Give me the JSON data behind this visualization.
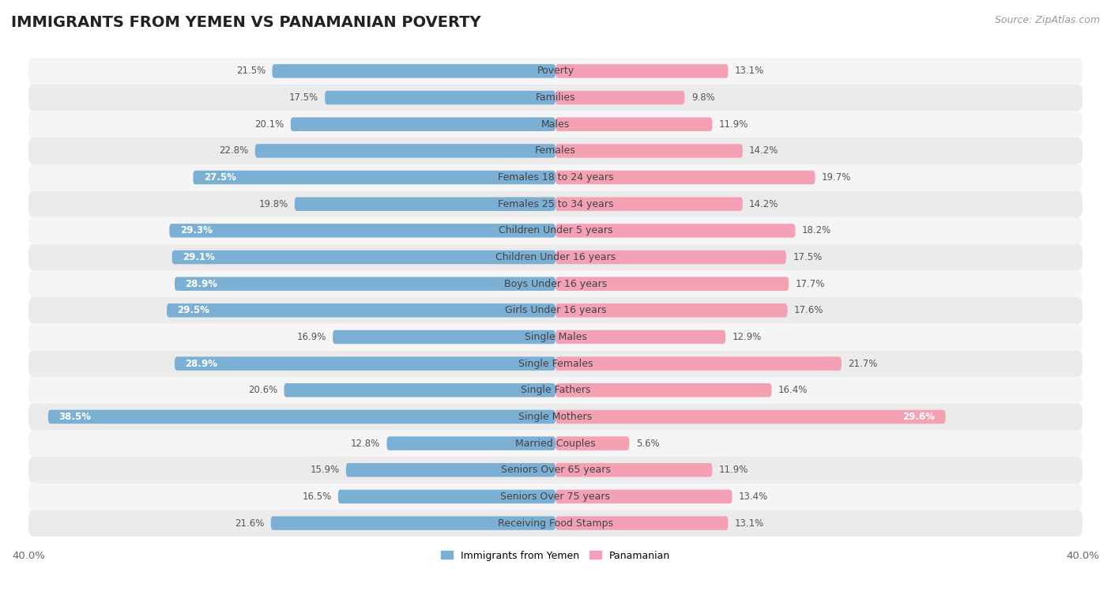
{
  "title": "IMMIGRANTS FROM YEMEN VS PANAMANIAN POVERTY",
  "source": "Source: ZipAtlas.com",
  "categories": [
    "Poverty",
    "Families",
    "Males",
    "Females",
    "Females 18 to 24 years",
    "Females 25 to 34 years",
    "Children Under 5 years",
    "Children Under 16 years",
    "Boys Under 16 years",
    "Girls Under 16 years",
    "Single Males",
    "Single Females",
    "Single Fathers",
    "Single Mothers",
    "Married Couples",
    "Seniors Over 65 years",
    "Seniors Over 75 years",
    "Receiving Food Stamps"
  ],
  "yemen_values": [
    21.5,
    17.5,
    20.1,
    22.8,
    27.5,
    19.8,
    29.3,
    29.1,
    28.9,
    29.5,
    16.9,
    28.9,
    20.6,
    38.5,
    12.8,
    15.9,
    16.5,
    21.6
  ],
  "panama_values": [
    13.1,
    9.8,
    11.9,
    14.2,
    19.7,
    14.2,
    18.2,
    17.5,
    17.7,
    17.6,
    12.9,
    21.7,
    16.4,
    29.6,
    5.6,
    11.9,
    13.4,
    13.1
  ],
  "yemen_color": "#7bafd4",
  "panama_color": "#f4a0b5",
  "yemen_label": "Immigrants from Yemen",
  "panama_label": "Panamanian",
  "bg_color_odd": "#ebebeb",
  "bg_color_even": "#f5f5f5",
  "xlim": 40.0,
  "bar_height": 0.52,
  "title_fontsize": 14,
  "label_fontsize": 9,
  "value_fontsize": 8.5,
  "tick_fontsize": 9.5,
  "source_fontsize": 9,
  "inside_label_threshold": 24.0
}
